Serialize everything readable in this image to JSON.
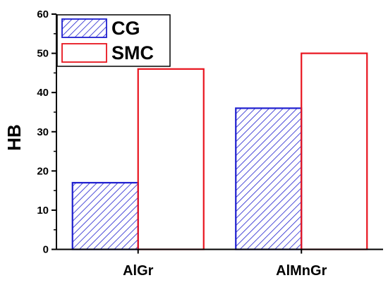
{
  "chart_data": {
    "type": "bar",
    "title": "",
    "xlabel": "",
    "ylabel": "HB",
    "ylim": [
      0,
      60
    ],
    "yticks": [
      0,
      10,
      20,
      30,
      40,
      50,
      60
    ],
    "categories": [
      "AlGr",
      "AlMnGr"
    ],
    "series": [
      {
        "name": "CG",
        "values": [
          17,
          36
        ],
        "color": "#1f1fcf",
        "fill": "hatched"
      },
      {
        "name": "SMC",
        "values": [
          46,
          50
        ],
        "color": "#e8141e",
        "fill": "none"
      }
    ],
    "legend": "top-left",
    "grid": false
  }
}
